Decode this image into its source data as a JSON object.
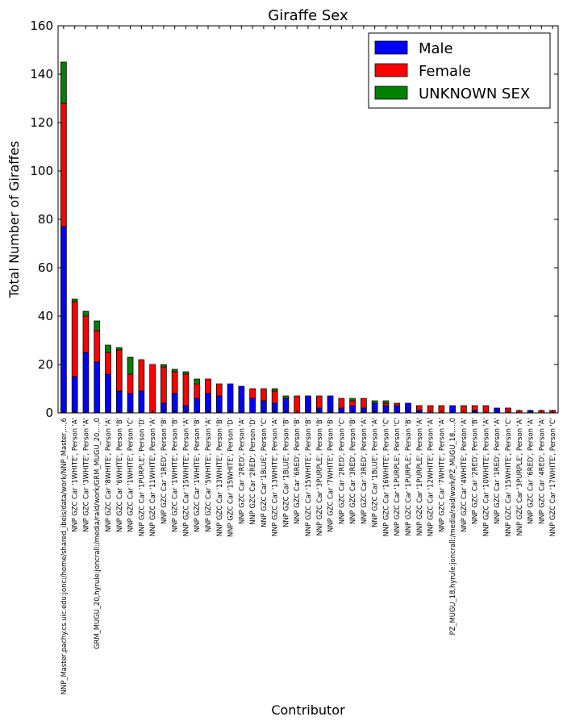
{
  "chart_data": {
    "type": "bar",
    "stacked": true,
    "title": "Giraffe Sex",
    "xlabel": "Contributor",
    "ylabel": "Total Number of Giraffes",
    "ylim": [
      0,
      160
    ],
    "yticks": [
      0,
      20,
      40,
      60,
      80,
      100,
      120,
      140,
      160
    ],
    "grid": false,
    "legend_position": "top-right",
    "categories": [
      "NNP_Master,pachy.cs.uic.edu:jonc:/home/shared_ibeis/data/work/NNP_Master,...,6",
      "NNP GZC Car '1WHITE', Person 'A'",
      "NNP GZC Car '3WHITE', Person 'A'",
      "GRM_MUGU_20,hyrule:joncrall:/media/raid/work/GRM_MUGU_20,...,0",
      "NNP GZC Car '8WHITE', Person 'A'",
      "NNP GZC Car '6WHITE', Person 'B'",
      "NNP GZC Car '1WHITE', Person 'C'",
      "NNP GZC Car '1PURPLE', Person 'D'",
      "NNP GZC Car '11WHITE', Person 'A'",
      "NNP GZC Car '1RED', Person 'B'",
      "NNP GZC Car '1WHITE', Person 'B'",
      "NNP GZC Car '15WHITE', Person 'A'",
      "NNP GZC Car '1WHITE', Person 'B'",
      "NNP GZC Car '5WHITE', Person 'A'",
      "NNP GZC Car '13WHITE', Person 'B'",
      "NNP GZC Car '15WHITE', Person 'D'",
      "NNP GZC Car '2RED', Person 'A'",
      "NNP GZC Car '2RED', Person 'D'",
      "NNP GZC Car '1BLUE', Person 'C'",
      "NNP GZC Car '13WHITE', Person 'A'",
      "NNP GZC Car '1BLUE', Person 'B'",
      "NNP GZC Car '6RED', Person 'B'",
      "NNP GZC Car '15WHITE', Person 'B'",
      "NNP GZC Car '3PURPLE', Person 'B'",
      "NNP GZC Car '7WHITE', Person 'B'",
      "NNP GZC Car '2RED', Person 'C'",
      "NNP GZC Car '3RED', Person 'B'",
      "NNP GZC Car '3RED', Person 'A'",
      "NNP GZC Car '1BLUE', Person 'A'",
      "NNP GZC Car '16WHITE', Person 'C'",
      "NNP GZC Car '1PURPLE', Person 'C'",
      "NNP GZC Car '1PURPLE', Person 'B'",
      "NNP GZC Car '1PURPLE', Person 'A'",
      "NNP GZC Car '12WHITE', Person 'A'",
      "NNP GZC Car '7WHITE', Person 'A'",
      "PZ_MUGU_18,hyrule:joncrall:/media/raid/work/PZ_MUGU_18,...,0",
      "NNP GZC Car '4WHITE', Person 'A'",
      "NNP GZC Car '2RED', Person 'B'",
      "NNP GZC Car '10WHITE', Person 'A'",
      "NNP GZC Car '1RED', Person 'A'",
      "NNP GZC Car '15WHITE', Person 'C'",
      "NNP GZC Car '3PURPLE', Person 'A'",
      "NNP GZC Car '6RED', Person 'A'",
      "NNP GZC Car '4RED', Person 'A'",
      "NNP GZC Car '17WHITE', Person 'C'"
    ],
    "series": [
      {
        "name": "Male",
        "color": "#0000ff",
        "values": [
          77,
          15,
          25,
          21,
          16,
          9,
          8,
          9,
          0,
          4,
          8,
          3,
          6,
          8,
          7,
          12,
          11,
          6,
          5,
          4,
          6,
          0,
          7,
          2,
          7,
          2,
          3,
          2,
          4,
          3,
          3,
          4,
          1,
          0,
          0,
          3,
          0,
          1,
          0,
          2,
          0,
          0,
          1,
          0,
          0
        ]
      },
      {
        "name": "Female",
        "color": "#ff0000",
        "values": [
          51,
          31,
          15,
          13,
          9,
          17,
          8,
          13,
          20,
          15,
          9,
          13,
          6,
          6,
          5,
          0,
          0,
          4,
          5,
          5,
          0,
          7,
          0,
          5,
          0,
          4,
          2,
          4,
          0,
          1,
          1,
          0,
          2,
          3,
          3,
          0,
          3,
          2,
          3,
          0,
          2,
          1,
          0,
          1,
          1
        ]
      },
      {
        "name": "UNKNOWN SEX",
        "color": "#008000",
        "values": [
          17,
          1,
          2,
          4,
          3,
          1,
          7,
          0,
          0,
          1,
          1,
          1,
          2,
          0,
          0,
          0,
          0,
          0,
          0,
          1,
          1,
          0,
          0,
          0,
          0,
          0,
          1,
          0,
          1,
          1,
          0,
          0,
          0,
          0,
          0,
          0,
          0,
          0,
          0,
          0,
          0,
          0,
          0,
          0,
          0
        ]
      }
    ]
  }
}
